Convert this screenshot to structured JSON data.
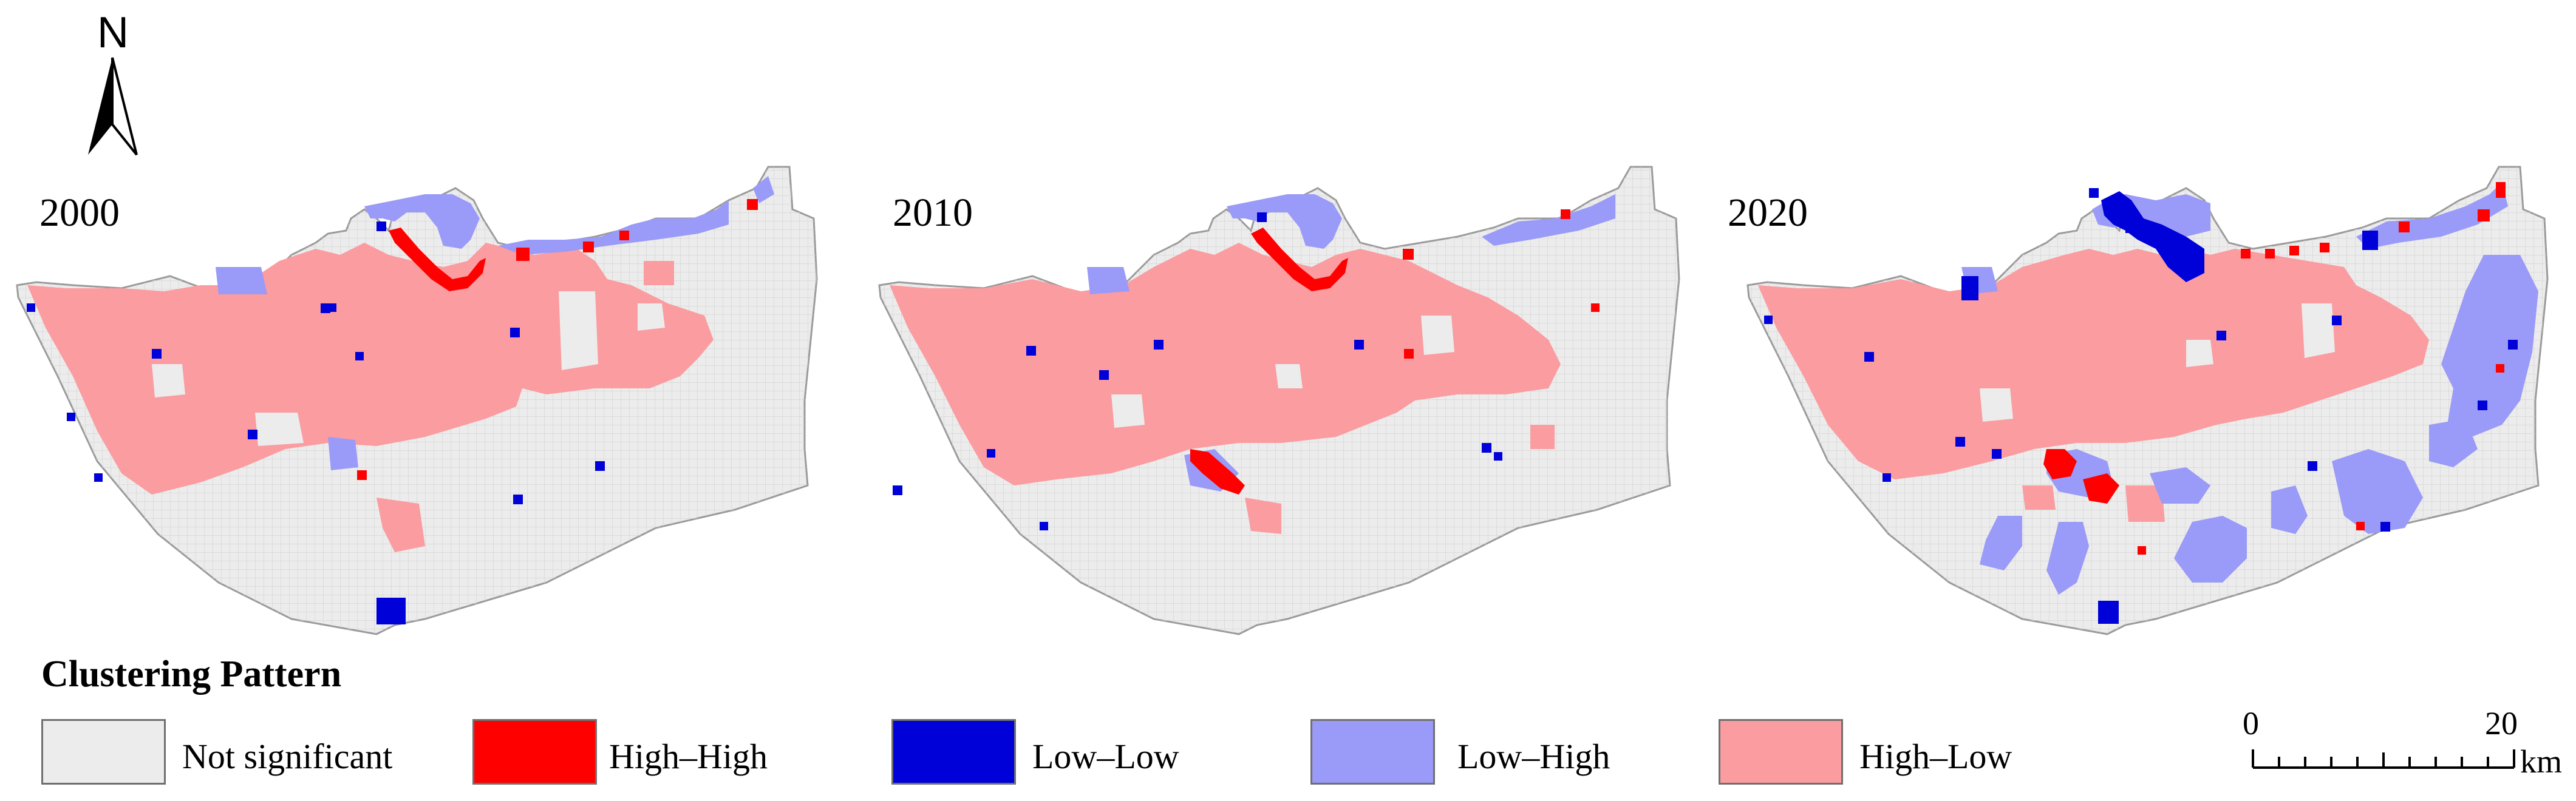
{
  "north_arrow": {
    "letter": "N"
  },
  "panels": [
    {
      "year": "2000"
    },
    {
      "year": "2010"
    },
    {
      "year": "2020"
    }
  ],
  "legend": {
    "title": "Clustering Pattern",
    "items": [
      {
        "label": "Not significant",
        "color": "#ececec"
      },
      {
        "label": "High–High",
        "color": "#ff0000"
      },
      {
        "label": "Low–Low",
        "color": "#0000d8"
      },
      {
        "label": "Low–High",
        "color": "#9a9af8"
      },
      {
        "label": "High–Low",
        "color": "#fa9ca0"
      }
    ]
  },
  "scale_bar": {
    "start": "0",
    "end": "20",
    "unit": "km"
  }
}
